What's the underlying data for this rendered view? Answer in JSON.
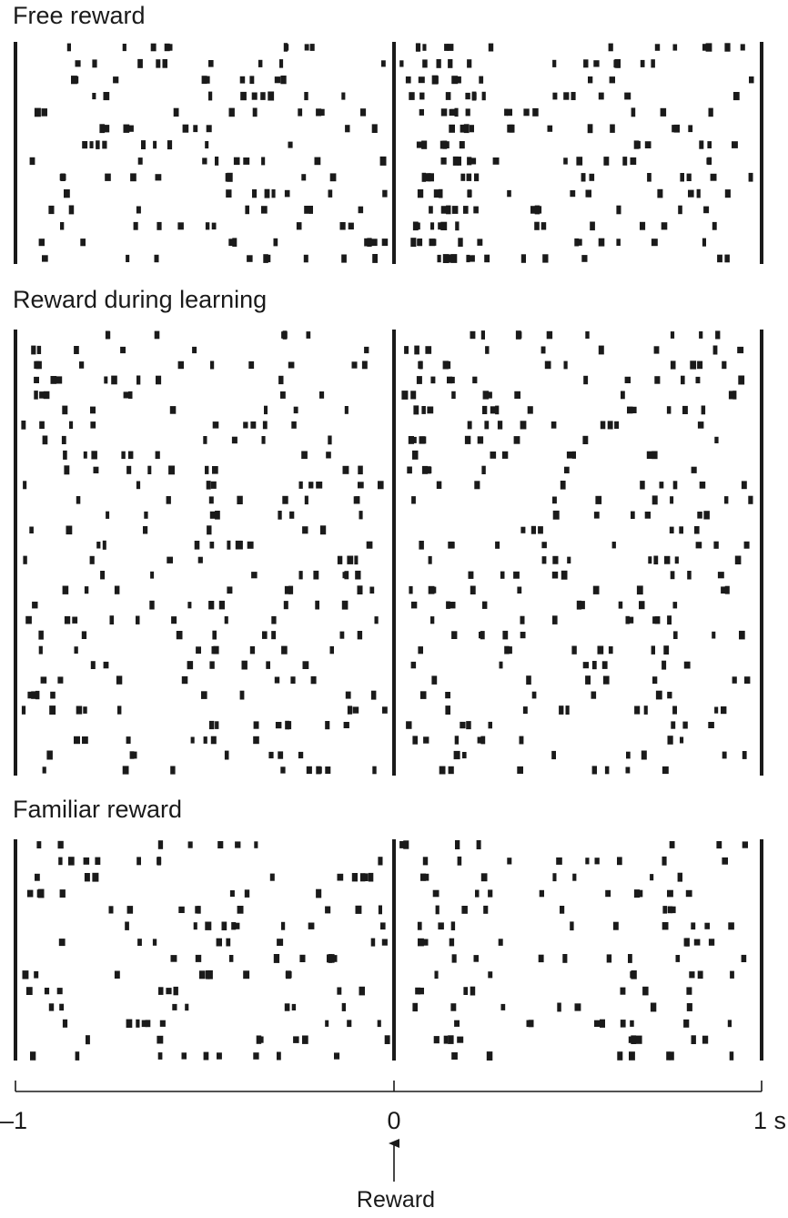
{
  "chart_data": [
    {
      "type": "scatter",
      "title": "Free reward",
      "x_unit": "s",
      "xlim": [
        -1,
        1
      ],
      "trials": 14,
      "seed": 11,
      "base_spikes_per_trial": [
        9,
        9
      ],
      "bursts": [
        {
          "x_start": 0.06,
          "x_end": 0.22,
          "trials": [
            1,
            14
          ],
          "spikes_per_trial": 4
        }
      ]
    },
    {
      "type": "scatter",
      "title": "Reward during learning",
      "x_unit": "s",
      "xlim": [
        -1,
        1
      ],
      "trials": 30,
      "seed": 23,
      "base_spikes_per_trial": [
        6,
        9
      ],
      "bursts": [
        {
          "x_start": 0.05,
          "x_end": 0.35,
          "trials": [
            1,
            8
          ],
          "spikes_per_trial": 3
        }
      ]
    },
    {
      "type": "scatter",
      "title": "Familiar reward",
      "x_unit": "s",
      "xlim": [
        -1,
        1
      ],
      "trials": 14,
      "seed": 37,
      "base_spikes_per_trial": [
        7,
        9
      ],
      "bursts": []
    }
  ],
  "axis": {
    "ticks": [
      {
        "value": -1,
        "label": "–1"
      },
      {
        "value": 0,
        "label": "0"
      },
      {
        "value": 1,
        "label": "1 s"
      }
    ]
  },
  "annotation": {
    "label": "Reward",
    "x": 0
  }
}
